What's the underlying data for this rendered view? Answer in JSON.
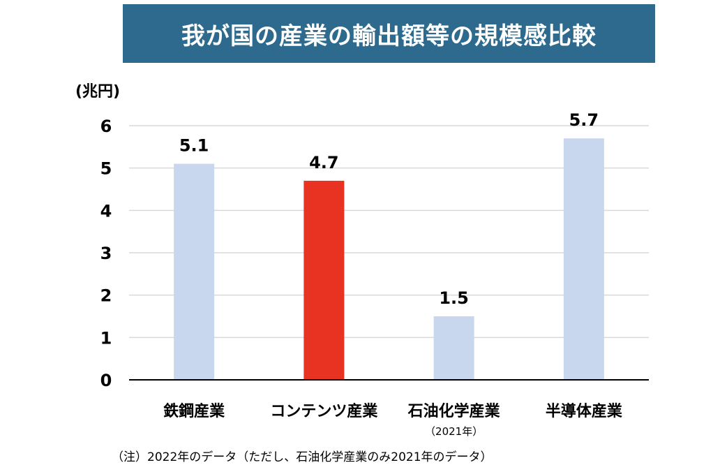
{
  "title": "我が国の産業の輸出額等の規模感比較",
  "footnote": "（注）2022年のデータ（ただし、石油化学産業のみ2021年のデータ）",
  "colors": {
    "banner": "#2d6a8d",
    "bar_default": "#c9d7ee",
    "bar_highlight": "#e83323",
    "grid": "#d9d9d9",
    "axis": "#000000"
  },
  "chart_data": {
    "type": "bar",
    "unit_label": "(兆円)",
    "categories": [
      "鉄鋼産業",
      "コンテンツ産業",
      "石油化学産業",
      "半導体産業"
    ],
    "category_sublabels": [
      "",
      "",
      "（2021年）",
      ""
    ],
    "values": [
      5.1,
      4.7,
      1.5,
      5.7
    ],
    "data_labels": [
      "5.1",
      "4.7",
      "1.5",
      "5.7"
    ],
    "highlight_index": 1,
    "ylim": [
      0,
      6
    ],
    "yticks": [
      0,
      1,
      2,
      3,
      4,
      5,
      6
    ],
    "grid": true,
    "legend": "none"
  }
}
